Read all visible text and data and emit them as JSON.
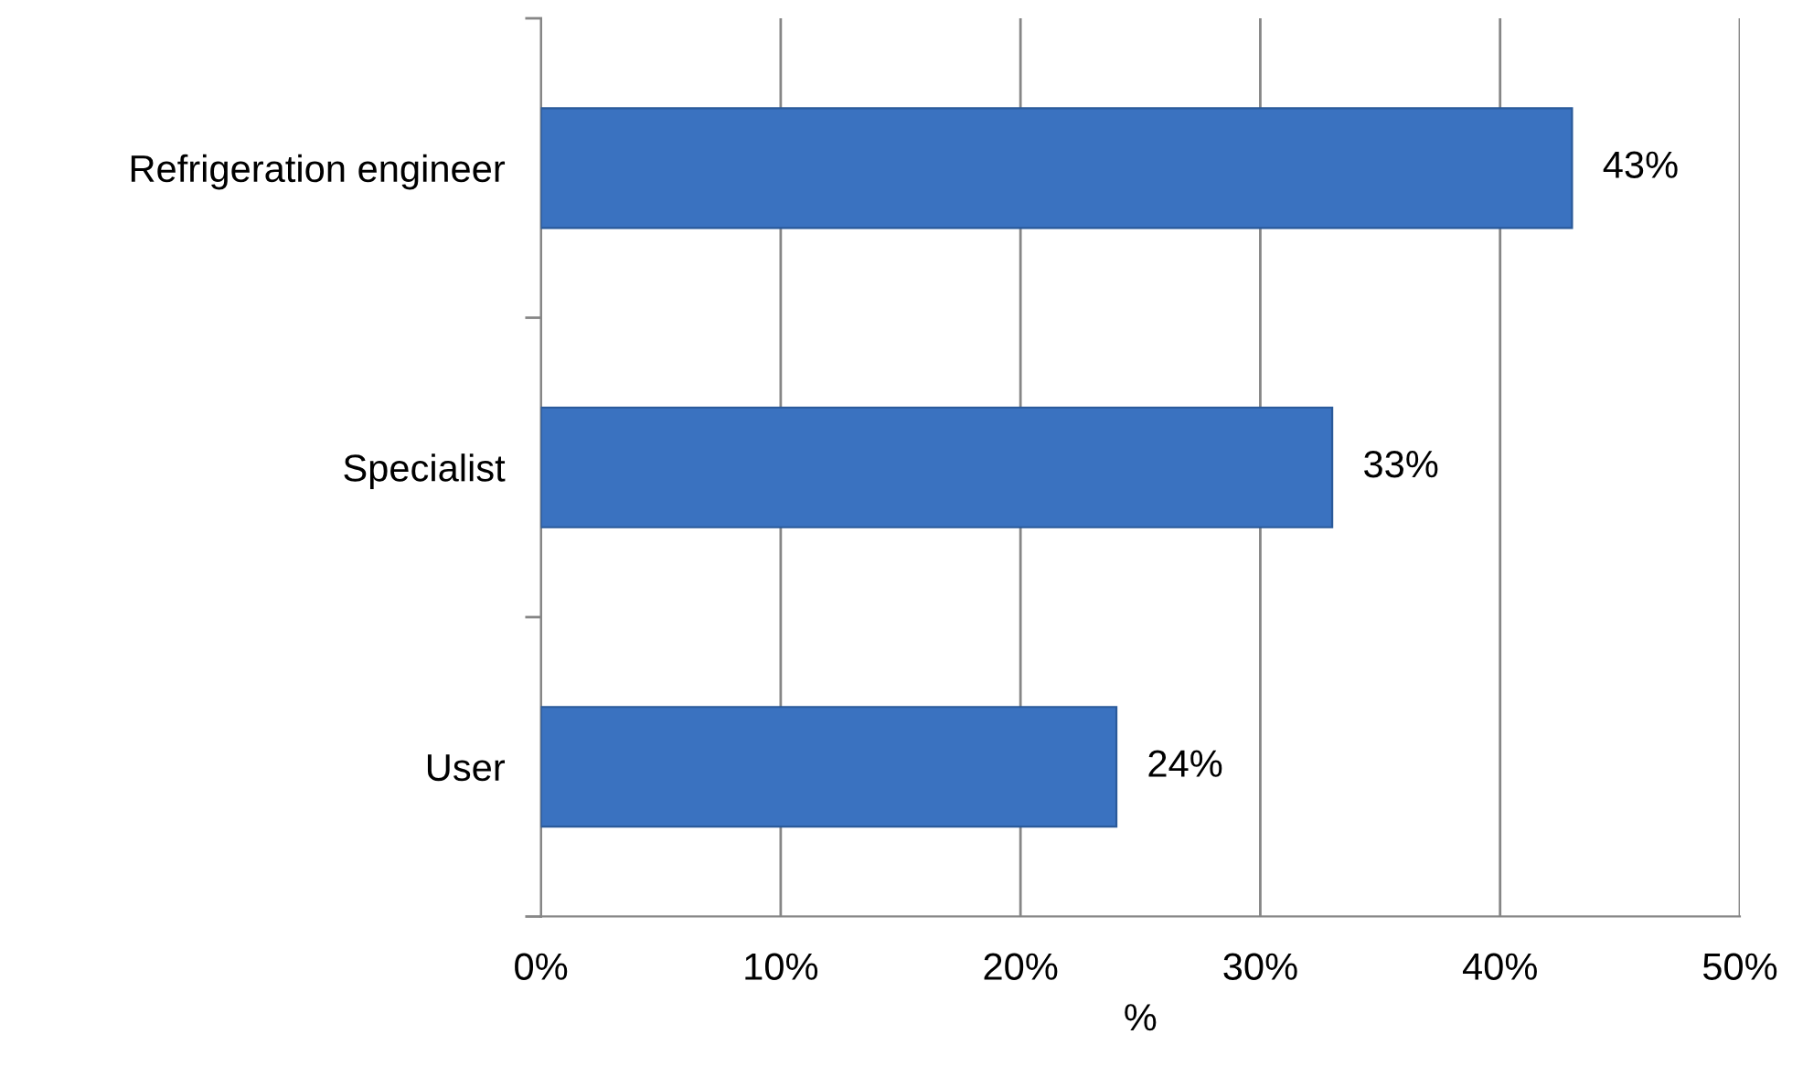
{
  "chart_data": {
    "type": "bar",
    "orientation": "horizontal",
    "xlabel": "%",
    "categories": [
      "Refrigeration engineer",
      "Specialist",
      "User"
    ],
    "values": [
      43,
      33,
      24
    ],
    "color": "#3a72c0",
    "value_labels": [
      "43%",
      "33%",
      "24%"
    ],
    "xlim": [
      0,
      50
    ],
    "xticks": [
      {
        "value": 0,
        "label": "0%"
      },
      {
        "value": 10,
        "label": "10%"
      },
      {
        "value": 20,
        "label": "20%"
      },
      {
        "value": 30,
        "label": "30%"
      },
      {
        "value": 40,
        "label": "40%"
      },
      {
        "value": 50,
        "label": "50%"
      }
    ],
    "grid": "x"
  }
}
